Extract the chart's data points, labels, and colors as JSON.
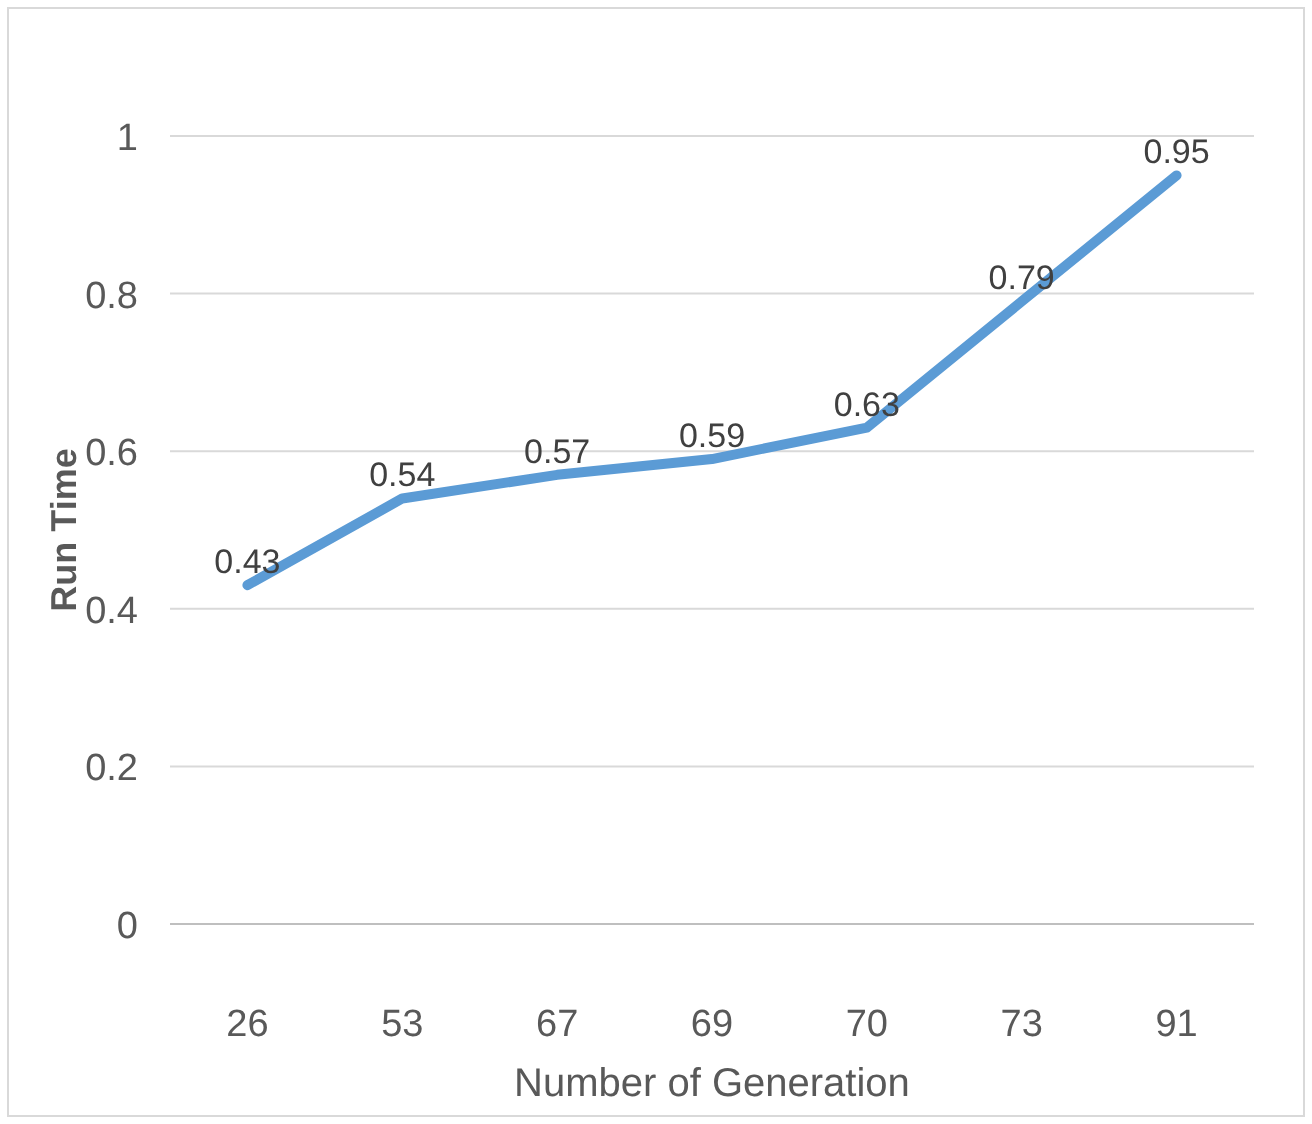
{
  "chart_data": {
    "type": "line",
    "xlabel": "Number of Generation",
    "ylabel": "Run Time",
    "categories": [
      "26",
      "53",
      "67",
      "69",
      "70",
      "73",
      "91"
    ],
    "series": [
      {
        "color": "#5b9bd5",
        "values": [
          0.43,
          0.54,
          0.57,
          0.59,
          0.63,
          0.79,
          0.95
        ]
      }
    ],
    "ylim": [
      0,
      1
    ],
    "yticks": [
      0,
      0.2,
      0.4,
      0.6,
      0.8,
      1
    ],
    "grid": "y",
    "data_labels": true,
    "marker": "none",
    "line_style": "solid"
  }
}
